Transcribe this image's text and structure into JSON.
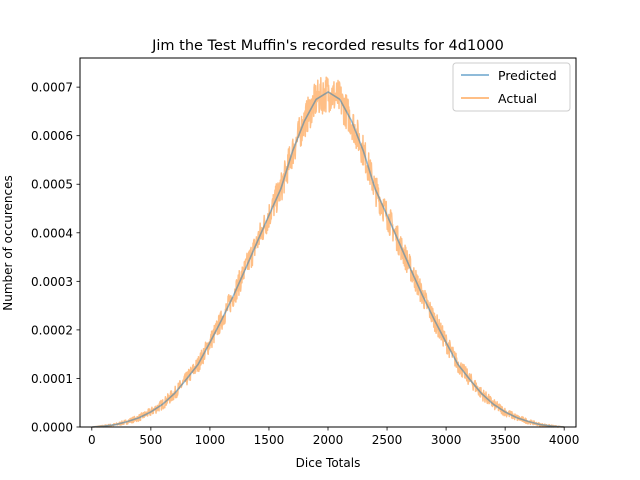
{
  "chart_data": {
    "type": "line",
    "title": "Jim the Test Muffin's recorded results for 4d1000",
    "xlabel": "Dice Totals",
    "ylabel": "Number of occurences",
    "xlim": [
      -100,
      4100
    ],
    "ylim": [
      0,
      0.00076
    ],
    "xticks": [
      0,
      500,
      1000,
      1500,
      2000,
      2500,
      3000,
      3500,
      4000
    ],
    "xtick_labels": [
      "0",
      "500",
      "1000",
      "1500",
      "2000",
      "2500",
      "3000",
      "3500",
      "4000"
    ],
    "yticks": [
      0,
      0.0001,
      0.0002,
      0.0003,
      0.0004,
      0.0005,
      0.0006,
      0.0007
    ],
    "ytick_labels": [
      "0.0000",
      "0.0001",
      "0.0002",
      "0.0003",
      "0.0004",
      "0.0005",
      "0.0006",
      "0.0007"
    ],
    "grid": false,
    "legend_position": "top-right",
    "series": [
      {
        "name": "Predicted",
        "color": "#1f77b4",
        "opacity": 0.5,
        "x": [
          4,
          100,
          200,
          300,
          400,
          500,
          600,
          700,
          800,
          900,
          1000,
          1100,
          1200,
          1300,
          1400,
          1500,
          1600,
          1700,
          1800,
          1900,
          2002,
          2100,
          2200,
          2300,
          2400,
          2500,
          2600,
          2700,
          2800,
          2900,
          3000,
          3100,
          3200,
          3300,
          3400,
          3500,
          3600,
          3700,
          3800,
          3900,
          4000
        ],
        "values": [
          0,
          1.8e-06,
          4.8e-06,
          1.1e-05,
          1.9e-05,
          3.1e-05,
          4.7e-05,
          6.9e-05,
          9.8e-05,
          0.000129,
          0.000174,
          0.000221,
          0.000271,
          0.000325,
          0.000381,
          0.000436,
          0.00049,
          0.000568,
          0.00063,
          0.000675,
          0.00069,
          0.000675,
          0.00063,
          0.000568,
          0.00049,
          0.000436,
          0.000381,
          0.000325,
          0.000271,
          0.000221,
          0.000174,
          0.000129,
          9.8e-05,
          6.9e-05,
          4.7e-05,
          3.1e-05,
          1.9e-05,
          1.1e-05,
          4.8e-06,
          1.8e-06,
          0
        ]
      },
      {
        "name": "Actual",
        "color": "#ff7f0e",
        "opacity": 0.5,
        "x": [
          4,
          100,
          200,
          300,
          400,
          500,
          600,
          700,
          800,
          900,
          1000,
          1100,
          1200,
          1300,
          1400,
          1500,
          1600,
          1700,
          1800,
          1900,
          2002,
          2100,
          2200,
          2300,
          2400,
          2500,
          2600,
          2700,
          2800,
          2900,
          3000,
          3100,
          3200,
          3300,
          3400,
          3500,
          3600,
          3700,
          3800,
          3900,
          4000
        ],
        "values": [
          0,
          1.8e-06,
          4.8e-06,
          1.1e-05,
          1.9e-05,
          3.1e-05,
          4.7e-05,
          6.9e-05,
          9.8e-05,
          0.000129,
          0.000174,
          0.000221,
          0.000271,
          0.000325,
          0.000381,
          0.000436,
          0.00049,
          0.000568,
          0.00063,
          0.000675,
          0.00069,
          0.000675,
          0.00063,
          0.000568,
          0.00049,
          0.000436,
          0.000381,
          0.000325,
          0.000271,
          0.000221,
          0.000174,
          0.000129,
          9.8e-05,
          6.9e-05,
          4.7e-05,
          3.1e-05,
          1.9e-05,
          1.1e-05,
          4.8e-06,
          1.8e-06,
          0
        ],
        "spread": [
          0,
          2e-06,
          3e-06,
          5e-06,
          7e-06,
          9e-06,
          1.1e-05,
          1.3e-05,
          1.5e-05,
          1.7e-05,
          2e-05,
          2.2e-05,
          2.4e-05,
          2.6e-05,
          2.8e-05,
          3e-05,
          3.2e-05,
          3.4e-05,
          3.6e-05,
          3.8e-05,
          4e-05,
          3.8e-05,
          3.6e-05,
          3.4e-05,
          3.2e-05,
          3e-05,
          2.8e-05,
          2.6e-05,
          2.4e-05,
          2.2e-05,
          2e-05,
          1.7e-05,
          1.5e-05,
          1.3e-05,
          1.1e-05,
          9e-06,
          7e-06,
          5e-06,
          3e-06,
          2e-06,
          0
        ]
      }
    ]
  }
}
